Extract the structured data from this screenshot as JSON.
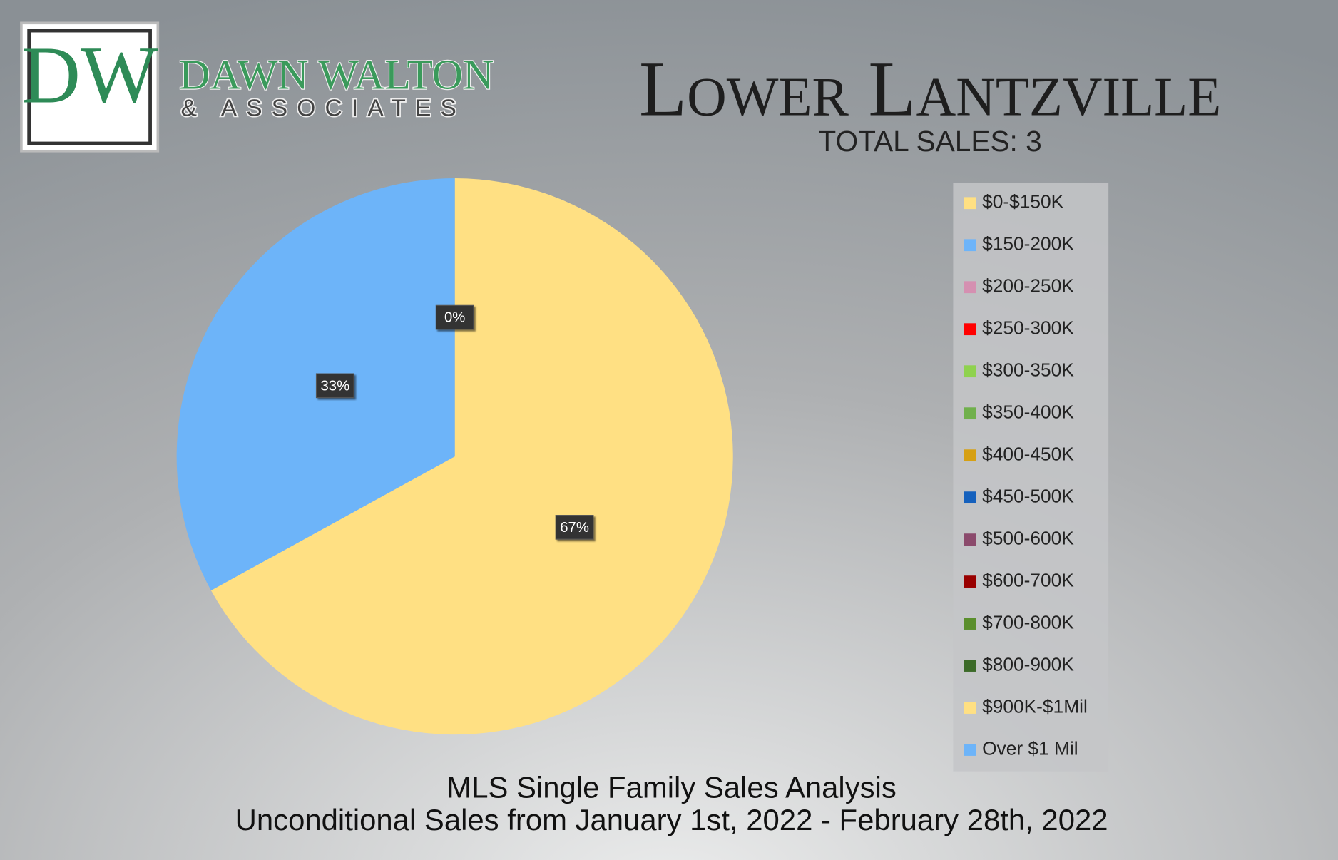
{
  "logo": {
    "initials": "DW",
    "name": "DAWN WALTON",
    "tagline": "& ASSOCIATES"
  },
  "chart_data": {
    "type": "pie",
    "title": "Lower Lantzville",
    "subtitle": "TOTAL SALES: 3",
    "footer": [
      "MLS Single Family Sales Analysis",
      "Unconditional Sales from January 1st, 2022 - February 28th, 2022"
    ],
    "categories": [
      "$0-$150K",
      "$150-200K",
      "$200-250K",
      "$250-300K",
      "$300-350K",
      "$350-400K",
      "$400-450K",
      "$450-500K",
      "$500-600K",
      "$600-700K",
      "$700-800K",
      "$800-900K",
      "$900K-$1Mil",
      "Over $1 Mil"
    ],
    "values": [
      67,
      33,
      0,
      0,
      0,
      0,
      0,
      0,
      0,
      0,
      0,
      0,
      0,
      0
    ],
    "value_labels": [
      "67%",
      "33%",
      "0%",
      null,
      null,
      null,
      null,
      null,
      null,
      null,
      null,
      null,
      null,
      null
    ],
    "colors": [
      "#ffe083",
      "#6db4f9",
      "#d590b1",
      "#ff0000",
      "#8fd24f",
      "#70b04c",
      "#d6a013",
      "#1561bd",
      "#8b4a6c",
      "#990000",
      "#5b8f2d",
      "#3c6a28",
      "#ffe083",
      "#6db4f9"
    ],
    "legend": "right"
  }
}
